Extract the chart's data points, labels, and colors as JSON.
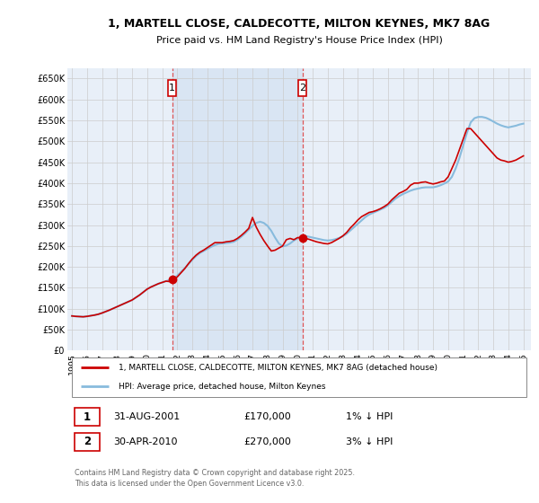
{
  "title": "1, MARTELL CLOSE, CALDECOTTE, MILTON KEYNES, MK7 8AG",
  "subtitle": "Price paid vs. HM Land Registry's House Price Index (HPI)",
  "ylim": [
    0,
    675000
  ],
  "yticks": [
    0,
    50000,
    100000,
    150000,
    200000,
    250000,
    300000,
    350000,
    400000,
    450000,
    500000,
    550000,
    600000,
    650000
  ],
  "ytick_labels": [
    "£0",
    "£50K",
    "£100K",
    "£150K",
    "£200K",
    "£250K",
    "£300K",
    "£350K",
    "£400K",
    "£450K",
    "£500K",
    "£550K",
    "£600K",
    "£650K"
  ],
  "xlim_start": 1994.7,
  "xlim_end": 2025.5,
  "xticks": [
    1995,
    1996,
    1997,
    1998,
    1999,
    2000,
    2001,
    2002,
    2003,
    2004,
    2005,
    2006,
    2007,
    2008,
    2009,
    2010,
    2011,
    2012,
    2013,
    2014,
    2015,
    2016,
    2017,
    2018,
    2019,
    2020,
    2021,
    2022,
    2023,
    2024,
    2025
  ],
  "red_line_color": "#cc0000",
  "blue_line_color": "#88bbdd",
  "grid_color": "#cccccc",
  "vline_color": "#dd4444",
  "background_color": "#ffffff",
  "plot_bg_color": "#e8eff8",
  "shade_color": "#d0dff0",
  "sale1_x": 2001.664,
  "sale1_y": 170000,
  "sale1_label": "1",
  "sale2_x": 2010.33,
  "sale2_y": 270000,
  "sale2_label": "2",
  "legend_red_label": "1, MARTELL CLOSE, CALDECOTTE, MILTON KEYNES, MK7 8AG (detached house)",
  "legend_blue_label": "HPI: Average price, detached house, Milton Keynes",
  "table_row1": [
    "1",
    "31-AUG-2001",
    "£170,000",
    "1% ↓ HPI"
  ],
  "table_row2": [
    "2",
    "30-APR-2010",
    "£270,000",
    "3% ↓ HPI"
  ],
  "footer": "Contains HM Land Registry data © Crown copyright and database right 2025.\nThis data is licensed under the Open Government Licence v3.0.",
  "hpi_data_x": [
    1995.0,
    1995.25,
    1995.5,
    1995.75,
    1996.0,
    1996.25,
    1996.5,
    1996.75,
    1997.0,
    1997.25,
    1997.5,
    1997.75,
    1998.0,
    1998.25,
    1998.5,
    1998.75,
    1999.0,
    1999.25,
    1999.5,
    1999.75,
    2000.0,
    2000.25,
    2000.5,
    2000.75,
    2001.0,
    2001.25,
    2001.5,
    2001.75,
    2002.0,
    2002.25,
    2002.5,
    2002.75,
    2003.0,
    2003.25,
    2003.5,
    2003.75,
    2004.0,
    2004.25,
    2004.5,
    2004.75,
    2005.0,
    2005.25,
    2005.5,
    2005.75,
    2006.0,
    2006.25,
    2006.5,
    2006.75,
    2007.0,
    2007.25,
    2007.5,
    2007.75,
    2008.0,
    2008.25,
    2008.5,
    2008.75,
    2009.0,
    2009.25,
    2009.5,
    2009.75,
    2010.0,
    2010.25,
    2010.5,
    2010.75,
    2011.0,
    2011.25,
    2011.5,
    2011.75,
    2012.0,
    2012.25,
    2012.5,
    2012.75,
    2013.0,
    2013.25,
    2013.5,
    2013.75,
    2014.0,
    2014.25,
    2014.5,
    2014.75,
    2015.0,
    2015.25,
    2015.5,
    2015.75,
    2016.0,
    2016.25,
    2016.5,
    2016.75,
    2017.0,
    2017.25,
    2017.5,
    2017.75,
    2018.0,
    2018.25,
    2018.5,
    2018.75,
    2019.0,
    2019.25,
    2019.5,
    2019.75,
    2020.0,
    2020.25,
    2020.5,
    2020.75,
    2021.0,
    2021.25,
    2021.5,
    2021.75,
    2022.0,
    2022.25,
    2022.5,
    2022.75,
    2023.0,
    2023.25,
    2023.5,
    2023.75,
    2024.0,
    2024.25,
    2024.5,
    2024.75,
    2025.0
  ],
  "hpi_data_y": [
    83000,
    82000,
    81500,
    81000,
    82000,
    83500,
    85000,
    87000,
    90000,
    93500,
    97000,
    101000,
    105000,
    109000,
    113000,
    117000,
    121000,
    127000,
    133000,
    140000,
    147000,
    152000,
    156000,
    160000,
    163000,
    166000,
    169000,
    173000,
    179000,
    188000,
    197000,
    207000,
    217000,
    226000,
    233000,
    238000,
    243000,
    248000,
    252000,
    255000,
    256000,
    257000,
    258000,
    260000,
    265000,
    272000,
    280000,
    289000,
    298000,
    305000,
    308000,
    305000,
    298000,
    286000,
    270000,
    256000,
    249000,
    251000,
    256000,
    263000,
    268000,
    272000,
    274000,
    272000,
    270000,
    268000,
    266000,
    264000,
    263000,
    264000,
    266000,
    269000,
    273000,
    279000,
    287000,
    295000,
    303000,
    311000,
    319000,
    325000,
    329000,
    333000,
    337000,
    341000,
    347000,
    355000,
    363000,
    369000,
    374000,
    378000,
    382000,
    385000,
    387000,
    389000,
    390000,
    390000,
    390000,
    392000,
    395000,
    399000,
    404000,
    415000,
    435000,
    460000,
    490000,
    520000,
    545000,
    555000,
    558000,
    558000,
    556000,
    552000,
    547000,
    542000,
    538000,
    535000,
    533000,
    535000,
    537000,
    540000,
    542000
  ],
  "red_data_x": [
    1995.0,
    1995.25,
    1995.5,
    1995.75,
    1996.0,
    1996.25,
    1996.5,
    1996.75,
    1997.0,
    1997.25,
    1997.5,
    1997.75,
    1998.0,
    1998.25,
    1998.5,
    1998.75,
    1999.0,
    1999.25,
    1999.5,
    1999.75,
    2000.0,
    2000.25,
    2000.5,
    2000.75,
    2001.0,
    2001.25,
    2001.5,
    2001.75,
    2002.0,
    2002.25,
    2002.5,
    2002.75,
    2003.0,
    2003.25,
    2003.5,
    2003.75,
    2004.0,
    2004.25,
    2004.5,
    2004.75,
    2005.0,
    2005.25,
    2005.5,
    2005.75,
    2006.0,
    2006.25,
    2006.5,
    2006.75,
    2007.0,
    2007.25,
    2007.5,
    2007.75,
    2008.0,
    2008.25,
    2008.5,
    2008.75,
    2009.0,
    2009.25,
    2009.5,
    2009.75,
    2010.0,
    2010.25,
    2010.5,
    2010.75,
    2011.0,
    2011.25,
    2011.5,
    2011.75,
    2012.0,
    2012.25,
    2012.5,
    2012.75,
    2013.0,
    2013.25,
    2013.5,
    2013.75,
    2014.0,
    2014.25,
    2014.5,
    2014.75,
    2015.0,
    2015.25,
    2015.5,
    2015.75,
    2016.0,
    2016.25,
    2016.5,
    2016.75,
    2017.0,
    2017.25,
    2017.5,
    2017.75,
    2018.0,
    2018.25,
    2018.5,
    2018.75,
    2019.0,
    2019.25,
    2019.5,
    2019.75,
    2020.0,
    2020.25,
    2020.5,
    2020.75,
    2021.0,
    2021.25,
    2021.5,
    2021.75,
    2022.0,
    2022.25,
    2022.5,
    2022.75,
    2023.0,
    2023.25,
    2023.5,
    2023.75,
    2024.0,
    2024.25,
    2024.5,
    2024.75,
    2025.0
  ],
  "red_data_y": [
    83000,
    82000,
    81500,
    81000,
    82000,
    83500,
    85000,
    87000,
    90000,
    93500,
    97000,
    101000,
    105000,
    109000,
    113000,
    117000,
    121000,
    127000,
    133000,
    140000,
    147000,
    152000,
    156000,
    160000,
    163000,
    166000,
    165000,
    170000,
    176000,
    186000,
    196000,
    208000,
    219000,
    228000,
    235000,
    240000,
    246000,
    252000,
    258000,
    258000,
    258000,
    260000,
    261000,
    263000,
    268000,
    275000,
    283000,
    292000,
    318000,
    295000,
    278000,
    263000,
    250000,
    238000,
    240000,
    245000,
    250000,
    265000,
    268000,
    265000,
    270000,
    270000,
    268000,
    266000,
    263000,
    260000,
    258000,
    256000,
    255000,
    258000,
    263000,
    268000,
    274000,
    282000,
    293000,
    302000,
    312000,
    320000,
    325000,
    330000,
    332000,
    335000,
    339000,
    344000,
    350000,
    360000,
    368000,
    376000,
    380000,
    385000,
    395000,
    400000,
    400000,
    402000,
    403000,
    400000,
    398000,
    400000,
    403000,
    405000,
    415000,
    435000,
    455000,
    480000,
    505000,
    530000,
    530000,
    520000,
    510000,
    500000,
    490000,
    480000,
    470000,
    460000,
    455000,
    453000,
    450000,
    452000,
    455000,
    460000,
    465000
  ]
}
